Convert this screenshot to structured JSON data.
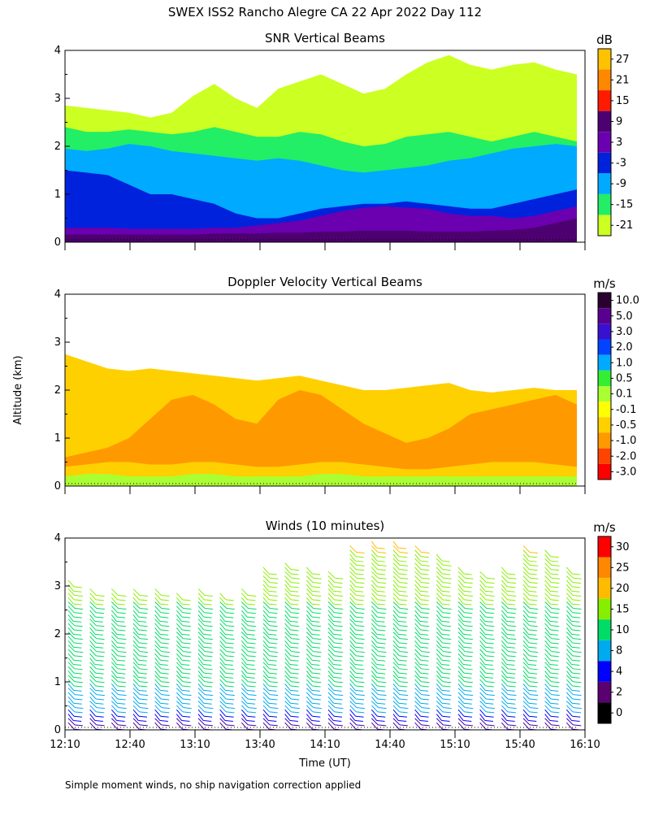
{
  "figure": {
    "title": "SWEX ISS2 Rancho Alegre CA  22 Apr 2022 Day 112",
    "ylabel": "Altitude (km)",
    "xlabel": "Time (UT)",
    "footnote": "Simple moment winds, no ship navigation correction applied"
  },
  "chart_data": [
    {
      "type": "heatmap",
      "title": "SNR Vertical Beams",
      "y_ticks": [
        "0",
        "1",
        "2",
        "3",
        "4"
      ],
      "ylim": [
        0,
        4
      ],
      "xlim_hours": [
        12.1667,
        16.1667
      ],
      "colorbar": {
        "unit": "dB",
        "labels": [
          "27",
          "21",
          "15",
          "9",
          "3",
          "-3",
          "-9",
          "-15",
          "-21"
        ],
        "colors": [
          "#ffc200",
          "#ff8800",
          "#ff1a00",
          "#4d0070",
          "#6a00b0",
          "#0022dd",
          "#00aaff",
          "#22ee66",
          "#ccff22"
        ]
      },
      "layers": [
        {
          "color": "#ccff22",
          "bottom": [
            0,
            0,
            0,
            0,
            0,
            0,
            0,
            0,
            0,
            0,
            0,
            0,
            0,
            0,
            0,
            0,
            0,
            0,
            0,
            0,
            0,
            0,
            0,
            0,
            0
          ],
          "top": [
            2.85,
            2.8,
            2.75,
            2.7,
            2.6,
            2.7,
            3.05,
            3.3,
            3.0,
            2.8,
            3.2,
            3.35,
            3.5,
            3.3,
            3.1,
            3.2,
            3.5,
            3.75,
            3.9,
            3.7,
            3.6,
            3.7,
            3.75,
            3.6,
            3.5
          ]
        },
        {
          "color": "#22ee66",
          "bottom": [
            0,
            0,
            0,
            0,
            0,
            0,
            0,
            0,
            0,
            0,
            0,
            0,
            0,
            0,
            0,
            0,
            0,
            0,
            0,
            0,
            0,
            0,
            0,
            0,
            0
          ],
          "top": [
            2.4,
            2.3,
            2.3,
            2.35,
            2.3,
            2.25,
            2.3,
            2.4,
            2.3,
            2.2,
            2.2,
            2.3,
            2.25,
            2.1,
            2.0,
            2.05,
            2.2,
            2.25,
            2.3,
            2.2,
            2.1,
            2.2,
            2.3,
            2.2,
            2.1
          ]
        },
        {
          "color": "#00aaff",
          "bottom": [
            0,
            0,
            0,
            0,
            0,
            0,
            0,
            0,
            0,
            0,
            0,
            0,
            0,
            0,
            0,
            0,
            0,
            0,
            0,
            0,
            0,
            0,
            0,
            0,
            0
          ],
          "top": [
            1.95,
            1.9,
            1.95,
            2.05,
            2.0,
            1.9,
            1.85,
            1.8,
            1.75,
            1.7,
            1.75,
            1.7,
            1.6,
            1.5,
            1.45,
            1.5,
            1.55,
            1.6,
            1.7,
            1.75,
            1.85,
            1.95,
            2.0,
            2.05,
            2.0
          ]
        },
        {
          "color": "#0022dd",
          "bottom": [
            0,
            0,
            0,
            0,
            0,
            0,
            0,
            0,
            0,
            0,
            0,
            0,
            0,
            0,
            0,
            0,
            0,
            0,
            0,
            0,
            0,
            0,
            0,
            0,
            0
          ],
          "top": [
            1.5,
            1.45,
            1.4,
            1.2,
            1.0,
            1.0,
            0.9,
            0.8,
            0.6,
            0.5,
            0.5,
            0.6,
            0.7,
            0.75,
            0.8,
            0.8,
            0.85,
            0.8,
            0.75,
            0.7,
            0.7,
            0.8,
            0.9,
            1.0,
            1.1
          ]
        },
        {
          "color": "#6a00b0",
          "bottom": [
            0,
            0,
            0,
            0,
            0,
            0,
            0,
            0,
            0,
            0,
            0,
            0,
            0,
            0,
            0,
            0,
            0,
            0,
            0,
            0,
            0,
            0,
            0,
            0,
            0
          ],
          "top": [
            0.3,
            0.3,
            0.3,
            0.28,
            0.28,
            0.28,
            0.28,
            0.3,
            0.3,
            0.35,
            0.4,
            0.45,
            0.55,
            0.65,
            0.72,
            0.75,
            0.72,
            0.7,
            0.6,
            0.55,
            0.55,
            0.5,
            0.55,
            0.65,
            0.75
          ]
        },
        {
          "color": "#4d0070",
          "bottom": [
            0,
            0,
            0,
            0,
            0,
            0,
            0,
            0,
            0,
            0,
            0,
            0,
            0,
            0,
            0,
            0,
            0,
            0,
            0,
            0,
            0,
            0,
            0,
            0,
            0
          ],
          "top": [
            0.16,
            0.16,
            0.16,
            0.16,
            0.16,
            0.16,
            0.16,
            0.18,
            0.18,
            0.18,
            0.2,
            0.2,
            0.22,
            0.22,
            0.24,
            0.24,
            0.24,
            0.22,
            0.22,
            0.22,
            0.24,
            0.26,
            0.3,
            0.4,
            0.5
          ]
        }
      ]
    },
    {
      "type": "heatmap",
      "title": "Doppler Velocity Vertical Beams",
      "y_ticks": [
        "0",
        "1",
        "2",
        "3",
        "4"
      ],
      "ylim": [
        0,
        4
      ],
      "xlim_hours": [
        12.1667,
        16.1667
      ],
      "colorbar": {
        "unit": "m/s",
        "labels": [
          "10.0",
          "5.0",
          "3.0",
          "2.0",
          "1.0",
          "0.5",
          "0.1",
          "-0.1",
          "-0.5",
          "-1.0",
          "-2.0",
          "-3.0"
        ],
        "colors": [
          "#2a0030",
          "#5a0090",
          "#3a10d0",
          "#0044ff",
          "#00aaff",
          "#33ee33",
          "#aaff33",
          "#ffff00",
          "#ffd000",
          "#ff9900",
          "#ff4400",
          "#ff0000"
        ]
      },
      "layers": [
        {
          "color": "#ffd000",
          "bottom": [
            0,
            0,
            0,
            0,
            0,
            0,
            0,
            0,
            0,
            0,
            0,
            0,
            0,
            0,
            0,
            0,
            0,
            0,
            0,
            0,
            0,
            0,
            0,
            0,
            0
          ],
          "top": [
            2.75,
            2.6,
            2.45,
            2.4,
            2.45,
            2.4,
            2.35,
            2.3,
            2.25,
            2.2,
            2.25,
            2.3,
            2.2,
            2.1,
            2.0,
            2.0,
            2.05,
            2.1,
            2.15,
            2.0,
            1.95,
            2.0,
            2.05,
            2.0,
            2.0
          ]
        },
        {
          "color": "#ff9900",
          "bottom": [
            0,
            0,
            0,
            0,
            0,
            0,
            0,
            0,
            0,
            0,
            0,
            0,
            0,
            0,
            0,
            0,
            0,
            0,
            0,
            0,
            0,
            0,
            0,
            0,
            0
          ],
          "top": [
            0.6,
            0.7,
            0.8,
            1.0,
            1.4,
            1.8,
            1.9,
            1.7,
            1.4,
            1.3,
            1.8,
            2.0,
            1.9,
            1.6,
            1.3,
            1.1,
            0.9,
            1.0,
            1.2,
            1.5,
            1.6,
            1.7,
            1.8,
            1.9,
            1.7
          ]
        },
        {
          "color": "#ffd000",
          "bottom": [
            0,
            0,
            0,
            0,
            0,
            0,
            0,
            0,
            0,
            0,
            0,
            0,
            0,
            0,
            0,
            0,
            0,
            0,
            0,
            0,
            0,
            0,
            0,
            0,
            0
          ],
          "top": [
            0.4,
            0.45,
            0.5,
            0.5,
            0.45,
            0.45,
            0.5,
            0.5,
            0.45,
            0.4,
            0.4,
            0.45,
            0.5,
            0.5,
            0.45,
            0.4,
            0.35,
            0.35,
            0.4,
            0.45,
            0.5,
            0.5,
            0.5,
            0.45,
            0.4
          ]
        },
        {
          "color": "#aaff33",
          "bottom": [
            0,
            0,
            0,
            0,
            0,
            0,
            0,
            0,
            0,
            0,
            0,
            0,
            0,
            0,
            0,
            0,
            0,
            0,
            0,
            0,
            0,
            0,
            0,
            0,
            0
          ],
          "top": [
            0.2,
            0.25,
            0.25,
            0.2,
            0.2,
            0.2,
            0.25,
            0.25,
            0.2,
            0.2,
            0.2,
            0.2,
            0.25,
            0.25,
            0.2,
            0.2,
            0.2,
            0.2,
            0.2,
            0.2,
            0.2,
            0.2,
            0.2,
            0.2,
            0.2
          ]
        }
      ]
    },
    {
      "type": "scatter",
      "title": "Winds (10 minutes)",
      "y_ticks": [
        "0",
        "1",
        "2",
        "3",
        "4"
      ],
      "ylim": [
        0,
        4
      ],
      "x_ticks": [
        "12:10",
        "12:40",
        "13:10",
        "13:40",
        "14:10",
        "14:40",
        "15:10",
        "15:40",
        "16:10"
      ],
      "x_tick_hours": [
        12.1667,
        12.6667,
        13.1667,
        13.6667,
        14.1667,
        14.6667,
        15.1667,
        15.6667,
        16.1667
      ],
      "xlim_hours": [
        12.1667,
        16.1667
      ],
      "profile_times_hours": [
        12.1667,
        12.3333,
        12.5,
        12.6667,
        12.8333,
        13.0,
        13.1667,
        13.3333,
        13.5,
        13.6667,
        13.8333,
        14.0,
        14.1667,
        14.3333,
        14.5,
        14.6667,
        14.8333,
        15.0,
        15.1667,
        15.3333,
        15.5,
        15.6667,
        15.8333,
        16.0
      ],
      "profile_top_km": [
        3.2,
        3.0,
        3.0,
        3.0,
        3.0,
        2.9,
        3.0,
        2.9,
        3.0,
        3.4,
        3.5,
        3.4,
        3.3,
        3.9,
        4.0,
        4.0,
        3.9,
        3.7,
        3.4,
        3.3,
        3.4,
        3.9,
        3.8,
        3.4
      ],
      "wind_speed_by_height": {
        "heights_km": [
          0.2,
          0.5,
          1.0,
          1.5,
          2.0,
          2.5,
          3.0,
          3.5,
          4.0
        ],
        "speed_ms": [
          3,
          8,
          10,
          12,
          13,
          14,
          16,
          18,
          22
        ]
      },
      "colorbar": {
        "unit": "m/s",
        "labels": [
          "30",
          "25",
          "20",
          "15",
          "10",
          "8",
          "4",
          "2",
          "0"
        ],
        "colors": [
          "#ff0000",
          "#ff8800",
          "#ffbb00",
          "#88ee00",
          "#00dd66",
          "#00aaee",
          "#0000ff",
          "#5a0070",
          "#000000"
        ]
      }
    }
  ]
}
